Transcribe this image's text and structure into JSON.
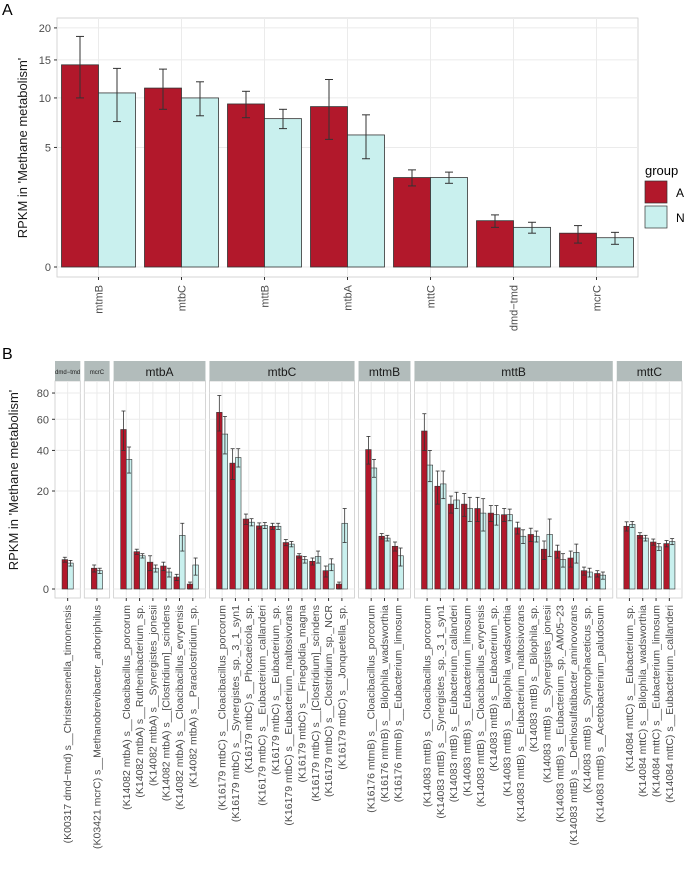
{
  "panel_labels": {
    "a": "A",
    "b": "B"
  },
  "colors": {
    "A": "#b2182b",
    "N": "#c9f0ee",
    "strip": "#b2bcbb",
    "grid": "#ebebeb",
    "error": "#333333"
  },
  "legend": {
    "title": "group",
    "entries": [
      "A",
      "N"
    ]
  },
  "chart_data": [
    {
      "type": "bar",
      "title": "",
      "ylabel": "RPKM in 'Methane metabolism'",
      "xlabel": "",
      "y_scale": "sqrt",
      "ylim": [
        0,
        21
      ],
      "yticks": [
        0,
        5,
        10,
        15,
        20
      ],
      "categories": [
        "mtmB",
        "mtbC",
        "mttB",
        "mtbA",
        "mttC",
        "dmd−tmd",
        "mcrC"
      ],
      "series": [
        {
          "name": "A",
          "values": [
            14.3,
            11.2,
            9.3,
            9.0,
            2.8,
            0.75,
            0.4
          ],
          "err": [
            4.3,
            2.5,
            1.5,
            3.3,
            0.5,
            0.2,
            0.2
          ]
        },
        {
          "name": "N",
          "values": [
            10.6,
            10.0,
            7.7,
            6.1,
            2.8,
            0.55,
            0.3
          ],
          "err": [
            3.2,
            2.0,
            1.0,
            2.0,
            0.35,
            0.15,
            0.12
          ]
        }
      ]
    },
    {
      "type": "bar",
      "title": "",
      "ylabel": "RPKM in 'Methane metabolism'",
      "xlabel": "",
      "y_scale": "sqrt",
      "ylim": [
        0,
        85
      ],
      "yticks": [
        0,
        20,
        40,
        60,
        80
      ],
      "facets": [
        {
          "name": "dmd−tmd",
          "categories": [
            "(K00317 dmd−tmd) s__Christensenella_timonensis"
          ],
          "A": [
            1.8
          ],
          "A_err": [
            0.3
          ],
          "N": [
            1.4
          ],
          "N_err": [
            0.3
          ]
        },
        {
          "name": "mcrC",
          "categories": [
            "(K03421 mcrC) s__Methanobrevibacter_arboriphilus"
          ],
          "A": [
            0.9
          ],
          "A_err": [
            0.3
          ],
          "N": [
            0.7
          ],
          "N_err": [
            0.2
          ]
        },
        {
          "name": "mtbA",
          "categories": [
            "(K14082 mtbA) s__Cloacibacillus_porcorum",
            "(K14082 mtbA) s__Ruthenibacterium_sp.",
            "(K14082 mtbA) s__Synergistes_jonesii",
            "(K14082 mtbA) s__[Clostridium]_scindens",
            "(K14082 mtbA) s__Cloacibacillus_evryensis",
            "(K14082 mtbA) s__Paraclostridium_sp."
          ],
          "A": [
            53,
            2.9,
            1.5,
            1.1,
            0.3,
            0.05
          ],
          "A_err": [
            13,
            0.4,
            0.8,
            0.4,
            0.15,
            0.05
          ],
          "N": [
            35,
            2.3,
            0.9,
            0.6,
            6.0,
            1.2
          ],
          "N_err": [
            7,
            0.3,
            0.3,
            0.3,
            3.0,
            0.8
          ]
        },
        {
          "name": "mtbC",
          "categories": [
            "(K16179 mtbC) s__Cloacibacillus_porcorum",
            "(K16179 mtbC) s__Synergistes_sp._3_1_syn1",
            "(K16179 mtbC) s__Phocaeicola_sp.",
            "(K16179 mtbC) s__Eubacterium_callanderi",
            "(K16179 mtbC) s__Eubacterium_sp.",
            "(K16179 mtbC) s__Eubacterium_maltosivorans",
            "(K16179 mtbC) s__Finegoldia_magna",
            "(K16179 mtbC) s__[Clostridium]_scindens",
            "(K16179 mtbC) s__Clostridium_sp._NCR",
            "(K16179 mtbC) s__Jonquetella_sp."
          ],
          "A": [
            65,
            33,
            10.2,
            8.3,
            8.2,
            4.5,
            2.3,
            1.6,
            0.7,
            0.05
          ],
          "A_err": [
            13,
            8,
            1.5,
            0.8,
            0.8,
            0.6,
            0.3,
            0.4,
            0.4,
            0.05
          ],
          "N": [
            50,
            36,
            9.3,
            8.4,
            8.2,
            4.2,
            1.8,
            2.2,
            1.3,
            9.0
          ],
          "N_err": [
            12,
            5,
            1.0,
            0.8,
            0.8,
            0.5,
            0.4,
            0.8,
            0.6,
            4.5
          ]
        },
        {
          "name": "mtmB",
          "categories": [
            "(K16176 mtmB) s__Cloacibacillus_porcorum",
            "(K16176 mtmB) s__Bilophila_wadsworthia",
            "(K16176 mtmB) s__Eubacterium_limosum"
          ],
          "A": [
            40.5,
            5.8,
            3.8
          ],
          "A_err": [
            8,
            0.6,
            0.8
          ],
          "N": [
            30.5,
            5.4,
            2.3
          ],
          "N_err": [
            4.5,
            0.6,
            1.2
          ]
        },
        {
          "name": "mttB",
          "categories": [
            "(K14083 mttB) s__Cloacibacillus_porcorum",
            "(K14083 mttB) s__Synergistes_sp._3_1_syn1",
            "(K14083 mttB) s__Eubacterium_callanderi",
            "(K14083 mttB) s__Eubacterium_limosum",
            "(K14083 mttB) s__Cloacibacillus_evryensis",
            "(K14083 mttB) s__Eubacterium_sp.",
            "(K14083 mttB) s__Bilophila_wadsworthia",
            "(K14083 mttB) s__Eubacterium_maltosivorans",
            "(K14083 mttB) s__Bilophila_sp.",
            "(K14083 mttB) s__Synergistes_jonesii",
            "(K14083 mttB) s__Eubacterium_sp._AM05−23",
            "(K14083 mttB) s__Dethiosulfatibacter_aminovorans",
            "(K14083 mttB) s__Syntrophaceticus_sp.",
            "(K14083 mttB) s__Acetobacterium_paludosum"
          ],
          "A": [
            52,
            22,
            15,
            15,
            13.5,
            12,
            11.5,
            7.8,
            6.2,
            3.3,
            3.0,
            2.0,
            0.7,
            0.5
          ],
          "A_err": [
            12,
            7,
            3,
            4,
            4,
            2.5,
            2,
            1.5,
            1.5,
            1.5,
            1.0,
            1.0,
            0.3,
            0.2
          ],
          "N": [
            32,
            23,
            16.5,
            13.5,
            12,
            11.5,
            11.5,
            5.8,
            5.8,
            6.2,
            1.8,
            2.8,
            0.6,
            0.4
          ],
          "N_err": [
            8,
            6,
            3,
            4,
            5,
            3,
            1.8,
            1.5,
            1.2,
            4,
            0.8,
            1.4,
            0.3,
            0.2
          ]
        },
        {
          "name": "mttC",
          "categories": [
            "(K14084 mttC) s__Eubacterium_sp.",
            "(K14084 mttC) s__Bilophila_wadsworthia",
            "(K14084 mttC) s__Eubacterium_limosum",
            "(K14084 mttC) s__Eubacterium_callanderi"
          ],
          "A": [
            8.2,
            6.0,
            4.6,
            4.3
          ],
          "A_err": [
            1.2,
            0.6,
            0.6,
            0.6
          ],
          "N": [
            8.7,
            5.4,
            3.7,
            4.7
          ],
          "N_err": [
            0.8,
            0.6,
            0.6,
            0.6
          ]
        }
      ]
    }
  ]
}
